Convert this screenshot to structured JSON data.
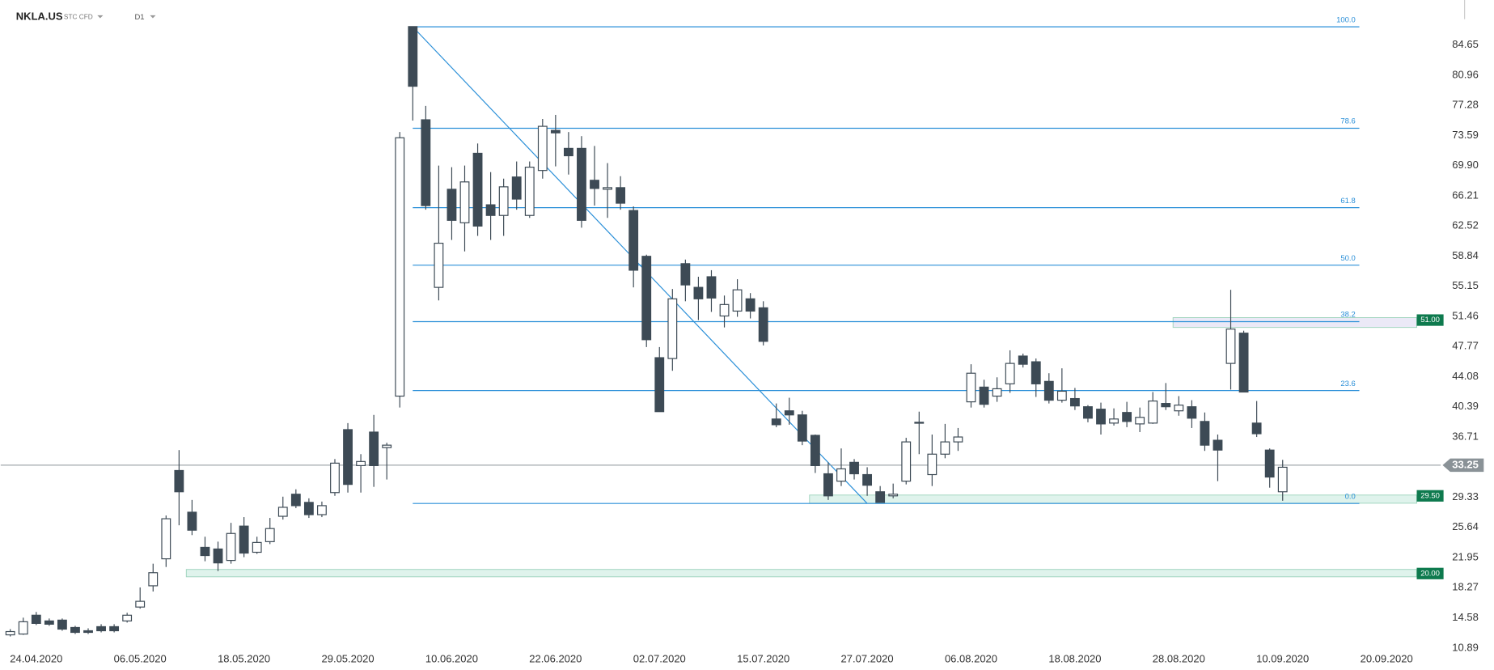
{
  "chart_data": {
    "type": "candlestick",
    "title": "NKLA.US",
    "instrument_type": "STC CFD",
    "interval": "D1",
    "categories": [
      null,
      null,
      "24.04.2020",
      null,
      null,
      null,
      null,
      null,
      null,
      null,
      "06.05.2020",
      null,
      null,
      null,
      null,
      null,
      null,
      null,
      "18.05.2020",
      null,
      null,
      null,
      null,
      null,
      null,
      null,
      "29.05.2020",
      null,
      null,
      null,
      null,
      null,
      null,
      null,
      "10.06.2020",
      null,
      null,
      null,
      null,
      null,
      null,
      null,
      "22.06.2020",
      null,
      null,
      null,
      null,
      null,
      null,
      null,
      "02.07.2020",
      null,
      null,
      null,
      null,
      null,
      null,
      null,
      "15.07.2020",
      null,
      null,
      null,
      null,
      null,
      null,
      null,
      "27.07.2020",
      null,
      null,
      null,
      null,
      null,
      null,
      null,
      "06.08.2020",
      null,
      null,
      null,
      null,
      null,
      null,
      null,
      "18.08.2020",
      null,
      null,
      null,
      null,
      null,
      null,
      null,
      "28.08.2020",
      null,
      null,
      null,
      null,
      null,
      null,
      null,
      "10.09.2020",
      null,
      null,
      null,
      null,
      null,
      null,
      null,
      "20.09.2020"
    ],
    "open": [
      12.5,
      12.6,
      14.9,
      14.2,
      14.3,
      13.4,
      13.0,
      13.5,
      13.5,
      14.2,
      15.9,
      18.5,
      21.8,
      32.6,
      27.5,
      23.2,
      23.0,
      21.6,
      25.8,
      22.6,
      23.9,
      27.0,
      29.7,
      28.7,
      27.2,
      29.9,
      37.6,
      33.2,
      37.3,
      35.4,
      41.7,
      86.9,
      75.5,
      55.0,
      67.0,
      62.9,
      71.4,
      65.1,
      63.8,
      68.5,
      63.8,
      69.3,
      74.2,
      72.0,
      72.0,
      68.1,
      67.0,
      67.2,
      64.4,
      58.8,
      46.4,
      46.3,
      57.9,
      55.0,
      56.3,
      51.5,
      52.1,
      53.6,
      52.5,
      38.9,
      39.9,
      39.4,
      36.9,
      32.2,
      31.3,
      33.6,
      32.1,
      30.0,
      29.5,
      31.3,
      38.4,
      32.1,
      34.6,
      36.1,
      41.0,
      42.8,
      41.7,
      43.2,
      46.6,
      45.9,
      43.5,
      41.2,
      41.4,
      40.4,
      40.1,
      38.4,
      39.7,
      38.3,
      38.4,
      40.8,
      39.9,
      40.4,
      38.6,
      36.3,
      45.7,
      49.4,
      38.4,
      35.1,
      30.0,
      null,
      null,
      null,
      null,
      null,
      null,
      null,
      null
    ],
    "high": [
      13.2,
      14.6,
      15.3,
      14.5,
      14.5,
      13.6,
      13.3,
      13.8,
      13.8,
      15.2,
      18.3,
      21.2,
      27.1,
      35.1,
      29.0,
      24.5,
      23.9,
      26.2,
      26.9,
      24.5,
      26.8,
      29.4,
      30.3,
      29.2,
      28.8,
      34.0,
      38.4,
      34.6,
      39.4,
      36.0,
      74.0,
      86.9,
      77.2,
      69.9,
      69.7,
      69.9,
      72.6,
      69.1,
      68.3,
      70.4,
      70.4,
      75.6,
      76.1,
      74.0,
      73.5,
      72.3,
      70.2,
      68.6,
      64.9,
      59.0,
      47.7,
      54.8,
      58.4,
      56.3,
      57.1,
      54.0,
      56.0,
      54.3,
      53.3,
      40.8,
      41.5,
      39.9,
      37.0,
      33.6,
      35.3,
      34.0,
      33.0,
      30.7,
      31.0,
      36.6,
      39.8,
      37.0,
      38.3,
      37.8,
      45.6,
      43.7,
      44.0,
      47.3,
      46.9,
      46.3,
      44.5,
      45.1,
      42.7,
      40.6,
      40.9,
      40.2,
      41.0,
      40.3,
      42.2,
      43.3,
      41.7,
      41.2,
      39.7,
      37.0,
      54.7,
      49.7,
      41.1,
      35.3,
      33.9,
      null,
      null,
      null,
      null,
      null,
      null,
      null,
      null
    ],
    "low": [
      12.3,
      12.5,
      13.7,
      13.6,
      13.0,
      12.6,
      12.6,
      12.8,
      12.8,
      14.0,
      15.7,
      17.8,
      20.8,
      25.9,
      24.7,
      21.5,
      20.3,
      21.2,
      22.0,
      22.4,
      23.6,
      26.6,
      28.0,
      26.8,
      26.9,
      29.5,
      29.9,
      29.9,
      30.6,
      31.5,
      40.3,
      75.4,
      64.5,
      53.4,
      60.8,
      59.4,
      61.3,
      60.8,
      61.3,
      64.5,
      63.5,
      68.3,
      69.8,
      68.8,
      62.3,
      65.0,
      63.5,
      64.5,
      55.0,
      47.7,
      39.8,
      44.8,
      53.3,
      51.0,
      52.0,
      50.1,
      51.4,
      51.2,
      47.9,
      37.9,
      38.2,
      35.7,
      32.3,
      29.0,
      30.7,
      31.5,
      29.5,
      28.7,
      29.2,
      30.9,
      34.6,
      30.7,
      34.1,
      35.0,
      40.3,
      40.3,
      41.0,
      42.1,
      45.2,
      41.6,
      40.8,
      40.9,
      40.0,
      38.5,
      37.0,
      38.1,
      37.9,
      37.3,
      38.3,
      40.0,
      39.3,
      37.8,
      35.0,
      31.3,
      42.5,
      42.2,
      36.7,
      30.5,
      28.9,
      null,
      null,
      null,
      null,
      null,
      null,
      null,
      null
    ],
    "close": [
      12.9,
      14.1,
      13.9,
      13.8,
      13.2,
      12.8,
      12.8,
      13.0,
      13.0,
      14.9,
      16.6,
      20.1,
      26.7,
      30.0,
      25.3,
      22.2,
      21.3,
      24.9,
      22.5,
      23.8,
      25.5,
      28.1,
      28.3,
      27.2,
      28.3,
      33.5,
      30.9,
      33.7,
      33.2,
      35.7,
      73.3,
      79.6,
      65.0,
      60.4,
      63.2,
      67.9,
      62.5,
      63.8,
      67.3,
      65.8,
      69.7,
      74.7,
      73.9,
      71.1,
      63.2,
      67.1,
      67.2,
      65.3,
      57.1,
      48.6,
      39.8,
      53.6,
      55.3,
      53.6,
      53.7,
      52.9,
      54.7,
      52.1,
      48.4,
      38.2,
      39.4,
      36.2,
      33.2,
      29.5,
      32.8,
      32.2,
      30.8,
      28.7,
      29.7,
      36.1,
      38.5,
      34.6,
      36.1,
      36.7,
      44.5,
      40.7,
      42.6,
      45.7,
      45.6,
      43.2,
      41.2,
      42.3,
      40.5,
      39.0,
      38.3,
      38.9,
      38.6,
      39.1,
      41.1,
      40.4,
      40.6,
      39.0,
      35.7,
      35.1,
      49.9,
      42.2,
      37.1,
      31.8,
      33.0,
      null,
      null,
      null,
      null,
      null,
      null,
      null,
      null
    ],
    "up_color": "#ffffff",
    "down_color": "#3d4a55",
    "ylim": [
      9.37,
      90.15
    ],
    "yticks": [
      84.65,
      80.96,
      77.28,
      73.59,
      {
        "value": 69.9,
        "label": "69.90"
      },
      66.21,
      62.52,
      58.84,
      55.15,
      51.46,
      47.77,
      44.08,
      40.39,
      36.71,
      29.33,
      25.64,
      21.95,
      18.27,
      14.58,
      10.89
    ],
    "last_price": {
      "value": 33.25,
      "label": "33.25"
    },
    "fibonacci": {
      "start": 31,
      "color": "#2a8fd8",
      "levels": [
        {
          "label": "100.0",
          "value": 86.87
        },
        {
          "label": "78.6",
          "value": 74.46
        },
        {
          "label": "61.8",
          "value": 64.75
        },
        {
          "label": "50.0",
          "value": 57.72
        },
        {
          "label": "38.2",
          "value": 50.81
        },
        {
          "label": "23.6",
          "value": 42.38
        },
        {
          "label": "0.0",
          "value": 28.57
        }
      ]
    },
    "trendline": {
      "x": [
        31,
        66
      ],
      "values": [
        86.87,
        28.57
      ]
    },
    "zones": [
      {
        "label": "51.00",
        "value": 51,
        "start": 90,
        "low": 50.1,
        "high": 51.3,
        "color": "#ebe9f7"
      },
      {
        "label": "29.50",
        "value": 29.5,
        "start": 62,
        "low": 28.6,
        "high": 29.6,
        "color": "#dff3ec"
      },
      {
        "label": "20.00",
        "value": 20,
        "start": 14,
        "low": 19.6,
        "high": 20.5,
        "color": "#dff3ec"
      }
    ]
  }
}
